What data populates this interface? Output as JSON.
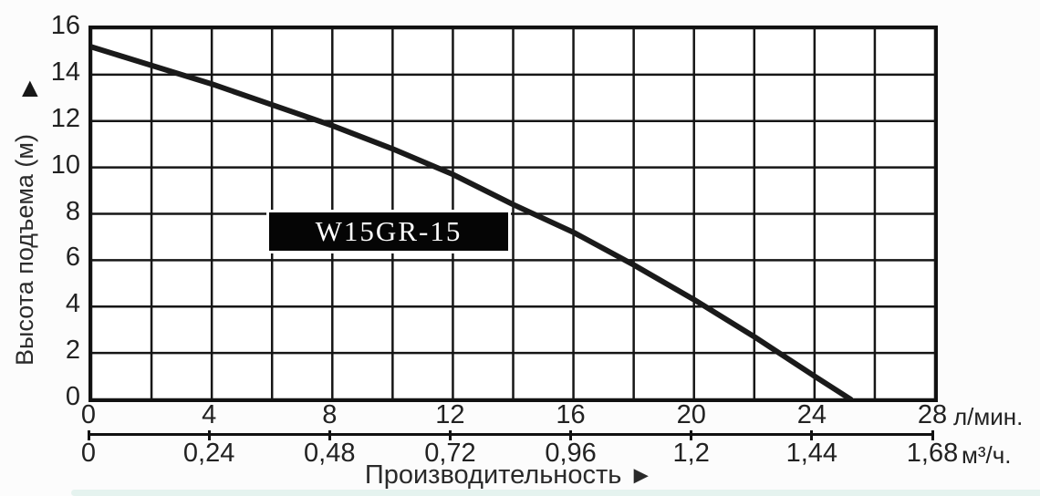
{
  "chart_data": {
    "type": "line",
    "model_label": "W15GR-15",
    "grid": true,
    "y_axis": {
      "title": "Высота подъема (м)",
      "arrow": "▲",
      "lim": [
        0,
        16
      ],
      "ticks": [
        0,
        2,
        4,
        6,
        8,
        10,
        12,
        14,
        16
      ],
      "grid_step": 2
    },
    "x_axis": {
      "title": "Производительность",
      "arrow": "►",
      "lim": [
        0,
        28
      ],
      "grid_step": 2,
      "unit_primary": "л/мин.",
      "unit_secondary": "м³/ч.",
      "ticks": [
        {
          "v": 0,
          "lmin": "0",
          "m3h": "0"
        },
        {
          "v": 4,
          "lmin": "4",
          "m3h": "0,24"
        },
        {
          "v": 8,
          "lmin": "8",
          "m3h": "0,48"
        },
        {
          "v": 12,
          "lmin": "12",
          "m3h": "0,72"
        },
        {
          "v": 16,
          "lmin": "16",
          "m3h": "0,96"
        },
        {
          "v": 20,
          "lmin": "20",
          "m3h": "1,2"
        },
        {
          "v": 24,
          "lmin": "24",
          "m3h": "1,44"
        },
        {
          "v": 28,
          "lmin": "28",
          "m3h": "1,68"
        }
      ]
    },
    "series": [
      {
        "name": "W15GR-15",
        "points": [
          [
            0,
            15.2
          ],
          [
            2,
            14.4
          ],
          [
            4,
            13.6
          ],
          [
            6,
            12.7
          ],
          [
            8,
            11.8
          ],
          [
            10,
            10.8
          ],
          [
            12,
            9.7
          ],
          [
            14,
            8.4
          ],
          [
            16,
            7.2
          ],
          [
            18,
            5.8
          ],
          [
            20,
            4.3
          ],
          [
            22,
            2.7
          ],
          [
            24,
            1.0
          ],
          [
            25.2,
            0
          ]
        ]
      }
    ],
    "colors": {
      "line": "#1a1a1a",
      "grid": "#161616",
      "label_box_bg": "#050505",
      "label_box_text": "#ffffff"
    }
  }
}
